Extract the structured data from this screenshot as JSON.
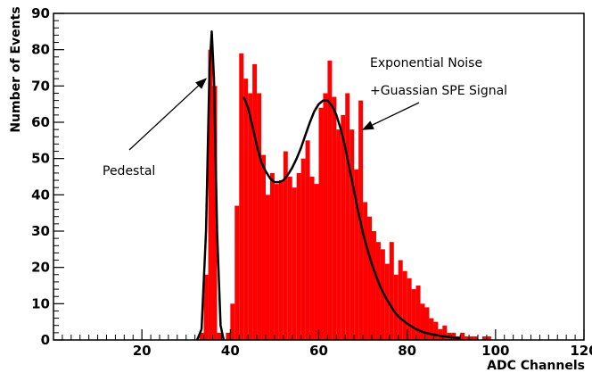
{
  "chart_data": {
    "type": "bar",
    "xlabel": "ADC Channels",
    "ylabel": "Number of Events",
    "xlim": [
      0,
      120
    ],
    "ylim": [
      0,
      90
    ],
    "x_ticks": [
      20,
      40,
      60,
      80,
      100,
      120
    ],
    "y_ticks": [
      0,
      10,
      20,
      30,
      40,
      50,
      60,
      70,
      80,
      90
    ],
    "grid": false,
    "colors": {
      "bars": "#ff0000",
      "fit": "#000000",
      "axes": "#000000"
    },
    "series": [
      {
        "type": "histogram",
        "bin_width": 1,
        "bins": [
          [
            33,
            2
          ],
          [
            34,
            18
          ],
          [
            35,
            80
          ],
          [
            36,
            70
          ],
          [
            37,
            2
          ],
          [
            39,
            2
          ],
          [
            40,
            10
          ],
          [
            41,
            37
          ],
          [
            42,
            79
          ],
          [
            43,
            72
          ],
          [
            44,
            68
          ],
          [
            45,
            76
          ],
          [
            46,
            68
          ],
          [
            47,
            51
          ],
          [
            48,
            40
          ],
          [
            49,
            46
          ],
          [
            50,
            43
          ],
          [
            51,
            44
          ],
          [
            52,
            52
          ],
          [
            53,
            45
          ],
          [
            54,
            42
          ],
          [
            55,
            46
          ],
          [
            56,
            50
          ],
          [
            57,
            55
          ],
          [
            58,
            45
          ],
          [
            59,
            43
          ],
          [
            60,
            64
          ],
          [
            61,
            68
          ],
          [
            62,
            77
          ],
          [
            63,
            67
          ],
          [
            64,
            58
          ],
          [
            65,
            62
          ],
          [
            66,
            68
          ],
          [
            67,
            58
          ],
          [
            68,
            47
          ],
          [
            69,
            66
          ],
          [
            70,
            38
          ],
          [
            71,
            34
          ],
          [
            72,
            30
          ],
          [
            73,
            27
          ],
          [
            74,
            25
          ],
          [
            75,
            21
          ],
          [
            76,
            27
          ],
          [
            77,
            18
          ],
          [
            78,
            22
          ],
          [
            79,
            19
          ],
          [
            80,
            17
          ],
          [
            81,
            14
          ],
          [
            82,
            15
          ],
          [
            83,
            10
          ],
          [
            84,
            9
          ],
          [
            85,
            6
          ],
          [
            86,
            5
          ],
          [
            87,
            3
          ],
          [
            88,
            4
          ],
          [
            89,
            2
          ],
          [
            90,
            2
          ],
          [
            91,
            1
          ],
          [
            92,
            2
          ],
          [
            93,
            1
          ],
          [
            94,
            1
          ],
          [
            95,
            1
          ],
          [
            97,
            1
          ],
          [
            98,
            1
          ]
        ]
      },
      {
        "type": "line",
        "name": "Pedestal fit",
        "points": [
          [
            32.5,
            0
          ],
          [
            33.5,
            3
          ],
          [
            34.5,
            30
          ],
          [
            35.3,
            75
          ],
          [
            35.8,
            85
          ],
          [
            36.3,
            72
          ],
          [
            37,
            30
          ],
          [
            37.8,
            4
          ],
          [
            38.5,
            0
          ]
        ]
      },
      {
        "type": "line",
        "name": "Exponential Noise + Gaussian SPE fit",
        "points": [
          [
            43,
            67
          ],
          [
            44,
            64
          ],
          [
            45,
            59
          ],
          [
            46,
            53.5
          ],
          [
            47,
            49
          ],
          [
            48,
            46.5
          ],
          [
            49,
            44.5
          ],
          [
            50,
            43.5
          ],
          [
            51,
            43.5
          ],
          [
            52,
            44
          ],
          [
            53,
            45.5
          ],
          [
            54,
            47.5
          ],
          [
            55,
            50
          ],
          [
            56,
            53
          ],
          [
            57,
            56.5
          ],
          [
            58,
            60
          ],
          [
            59,
            63
          ],
          [
            60,
            65
          ],
          [
            61,
            66
          ],
          [
            62,
            66
          ],
          [
            63,
            64.5
          ],
          [
            64,
            62
          ],
          [
            65,
            58
          ],
          [
            66,
            53
          ],
          [
            67,
            47
          ],
          [
            68,
            41
          ],
          [
            69,
            35
          ],
          [
            70,
            29.5
          ],
          [
            71,
            25
          ],
          [
            72,
            21
          ],
          [
            73,
            17.5
          ],
          [
            74,
            14.5
          ],
          [
            75,
            12
          ],
          [
            76,
            10
          ],
          [
            77,
            8
          ],
          [
            78,
            6.5
          ],
          [
            80,
            4.5
          ],
          [
            82,
            3
          ],
          [
            84,
            2
          ],
          [
            86,
            1.5
          ],
          [
            88,
            1
          ],
          [
            92,
            0.5
          ]
        ]
      }
    ],
    "annotations": [
      {
        "label": "Exponential Noise",
        "target": [
          70,
          58
        ]
      },
      {
        "label": "+Guassian SPE Signal"
      },
      {
        "label": "Pedestal",
        "target": [
          34.5,
          72
        ]
      }
    ]
  }
}
